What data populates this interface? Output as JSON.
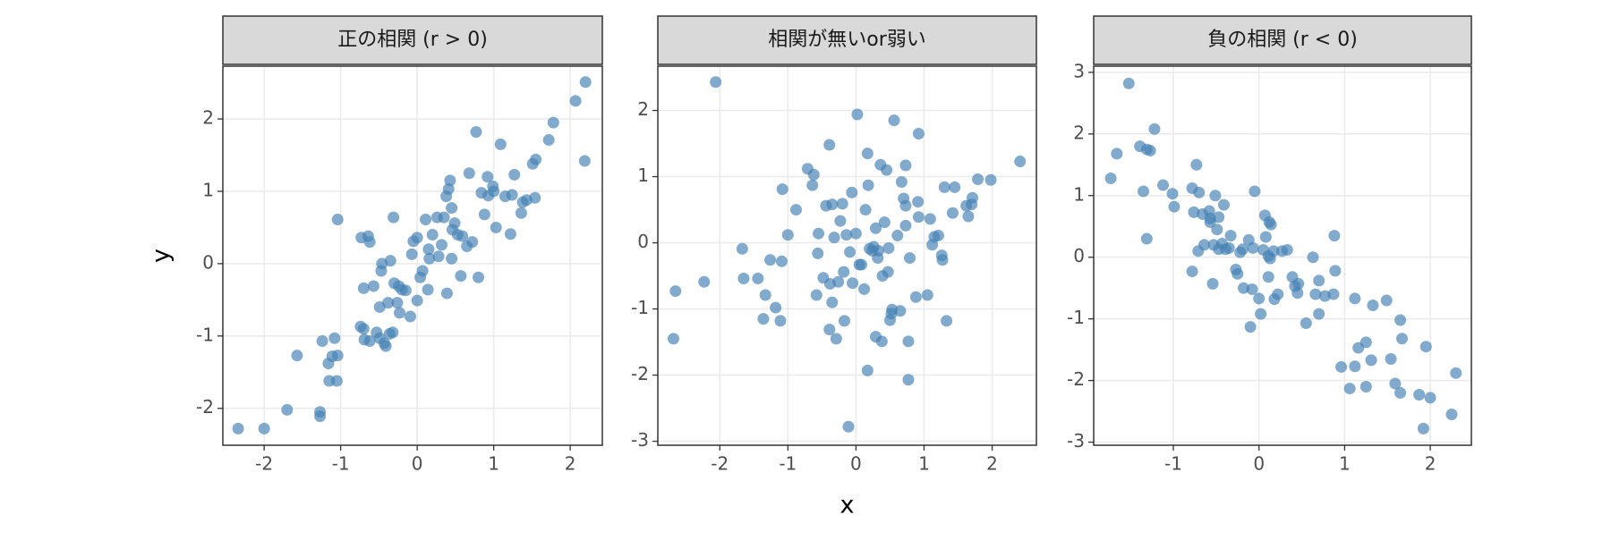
{
  "chart_data": [
    {
      "type": "scatter",
      "title": "正の相関 (r > 0)",
      "ylabel": "y",
      "color": "#4682b4",
      "grid": true,
      "xlim": [
        -2.54,
        2.42
      ],
      "ylim": [
        -2.51,
        2.73
      ],
      "xticks": [
        -2,
        -1,
        0,
        1,
        2
      ],
      "yticks": [
        -2,
        -1,
        0,
        1,
        2
      ],
      "x": [
        -2.34,
        -2,
        -1.7,
        -1.27,
        -1.27,
        -1.57,
        -1.24,
        -1.16,
        -1.15,
        -1.05,
        -1.08,
        -1.11,
        -1.04,
        -1.04,
        -0.73,
        -0.64,
        -0.62,
        -0.7,
        -0.57,
        -0.74,
        -0.7,
        -0.69,
        -0.62,
        -0.53,
        -0.49,
        -0.43,
        -0.41,
        -0.36,
        -0.32,
        -0.46,
        -0.47,
        -0.35,
        -0.31,
        -0.49,
        -0.38,
        -0.3,
        -0.24,
        -0.2,
        -0.26,
        -0.23,
        -0.09,
        0,
        -0.15,
        -0.07,
        -0.05,
        0,
        0.04,
        0.07,
        0.11,
        0.15,
        0.16,
        0.14,
        0.2,
        0.26,
        0.32,
        0.28,
        0.35,
        0.38,
        0.41,
        0.43,
        0.45,
        0.46,
        0.45,
        0.39,
        0.49,
        0.53,
        0.57,
        0.59,
        0.65,
        0.72,
        0.68,
        0.77,
        0.8,
        0.84,
        0.88,
        0.92,
        0.93,
        0.99,
        1,
        1.03,
        1.09,
        1.15,
        1.22,
        1.24,
        1.27,
        1.36,
        1.38,
        1.43,
        1.51,
        1.55,
        1.54,
        1.72,
        1.78,
        2.07,
        2.19,
        2.2
      ],
      "values": [
        -2.28,
        -2.28,
        -2.02,
        -2.05,
        -2.11,
        -1.27,
        -1.07,
        -1.38,
        -1.62,
        -1.62,
        -1.03,
        -1.28,
        -1.27,
        0.61,
        0.36,
        0.38,
        0.3,
        -0.34,
        -0.31,
        -0.87,
        -0.9,
        -1.05,
        -1.07,
        -0.95,
        -1.03,
        -1.1,
        -1.14,
        -0.97,
        -0.95,
        0,
        -0.1,
        0.04,
        0.64,
        -0.6,
        -0.54,
        -0.27,
        -0.31,
        -0.36,
        -0.54,
        -0.68,
        -0.73,
        -0.51,
        -0.37,
        0.13,
        0.31,
        0.36,
        -0.19,
        -0.1,
        0.61,
        0.2,
        0.07,
        -0.36,
        0.4,
        0.64,
        0.26,
        0.1,
        0.64,
        0.93,
        1.03,
        1.15,
        0.77,
        0.47,
        0.07,
        -0.41,
        0.56,
        0.4,
        -0.17,
        0.38,
        0.24,
        0.3,
        1.25,
        1.82,
        -0.19,
        0.98,
        0.68,
        1.2,
        0.94,
        1.07,
        1,
        0.5,
        1.65,
        0.93,
        0.41,
        0.95,
        1.23,
        0.7,
        0.85,
        0.88,
        1.38,
        1.44,
        0.91,
        1.71,
        1.95,
        2.25,
        1.42,
        2.51
      ]
    },
    {
      "type": "scatter",
      "title": "相関が無いor弱い",
      "xlabel": "x",
      "color": "#4682b4",
      "grid": true,
      "xlim": [
        -2.91,
        2.65
      ],
      "ylim": [
        -3.06,
        2.67
      ],
      "xticks": [
        -2,
        -1,
        0,
        1,
        2
      ],
      "yticks": [
        -3,
        -2,
        -1,
        0,
        1,
        2
      ],
      "x": [
        -2.06,
        -2.65,
        -2.68,
        -2.23,
        -1.67,
        -1.65,
        -1.44,
        -1.33,
        -1.36,
        -1.26,
        -1.18,
        -1.11,
        -1.09,
        -1.08,
        -1,
        -0.88,
        -0.71,
        -0.64,
        -0.62,
        -0.56,
        -0.55,
        -0.58,
        -0.48,
        -0.44,
        -0.39,
        -0.38,
        -0.39,
        -0.35,
        -0.32,
        -0.35,
        -0.29,
        -0.26,
        -0.23,
        -0.2,
        -0.17,
        -0.18,
        -0.14,
        -0.09,
        -0.05,
        -0.11,
        -0.06,
        0.02,
        0.05,
        0,
        0.08,
        0.12,
        0.14,
        0.17,
        0.17,
        0.18,
        0.2,
        0.24,
        0.26,
        0.29,
        0.29,
        0.33,
        0.32,
        0.36,
        0.38,
        0.39,
        0.42,
        0.45,
        0.47,
        0.48,
        0.5,
        0.53,
        0.52,
        0.56,
        0.61,
        0.65,
        0.67,
        0.7,
        0.73,
        0.73,
        0.77,
        0.73,
        0.77,
        0.79,
        0.88,
        0.92,
        0.91,
        0.92,
        1.05,
        1.09,
        1.12,
        1.15,
        1.21,
        1.26,
        1.27,
        1.3,
        1.33,
        1.42,
        1.45,
        1.62,
        1.65,
        1.71,
        1.7,
        1.79,
        1.98,
        2.41
      ],
      "values": [
        2.43,
        -0.73,
        -1.45,
        -0.59,
        -0.09,
        -0.54,
        -0.54,
        -0.79,
        -1.15,
        -0.26,
        -0.98,
        -1.18,
        -0.28,
        0.81,
        0.12,
        0.5,
        1.12,
        0.87,
        1.03,
        -0.16,
        0.14,
        -0.79,
        -0.53,
        0.56,
        1.48,
        -0.62,
        -1.31,
        0.58,
        0.08,
        -0.9,
        -1.45,
        -0.59,
        0.33,
        0.59,
        -1.18,
        -0.44,
        0.12,
        -0.14,
        -0.61,
        -2.78,
        0.76,
        1.94,
        -0.33,
        0.14,
        -0.33,
        -0.7,
        0.5,
        1.35,
        -1.93,
        0.87,
        -0.09,
        -0.12,
        -0.06,
        0.22,
        -1.42,
        -0.12,
        -0.23,
        1.18,
        -1.49,
        -0.5,
        0.31,
        1.1,
        -0.44,
        -0.08,
        -1.17,
        -1.01,
        -1.07,
        1.85,
        0.11,
        -1.03,
        0.92,
        0.67,
        1.17,
        0.26,
        -1.49,
        0.56,
        -2.07,
        -0.23,
        -0.82,
        1.65,
        0.62,
        0.39,
        -0.79,
        0.36,
        -0.03,
        0.09,
        0.11,
        -0.19,
        -0.26,
        0.84,
        -1.18,
        0.45,
        0.84,
        0.56,
        0.4,
        0.68,
        0.58,
        0.96,
        0.95,
        1.23
      ]
    },
    {
      "type": "scatter",
      "title": "負の相関 (r < 0)",
      "color": "#4682b4",
      "grid": true,
      "xlim": [
        -1.93,
        2.48
      ],
      "ylim": [
        -3.05,
        3.1
      ],
      "xticks": [
        -1,
        0,
        1,
        2
      ],
      "yticks": [
        -3,
        -2,
        -1,
        0,
        1,
        2,
        3
      ],
      "x": [
        -1.52,
        -1.73,
        -1.66,
        -1.39,
        -1.35,
        -1.31,
        -1.31,
        -1.27,
        -1.22,
        -1.12,
        -1.01,
        -0.99,
        -0.78,
        -0.78,
        -0.73,
        -0.76,
        -0.71,
        -0.7,
        -0.64,
        -0.66,
        -0.58,
        -0.57,
        -0.57,
        -0.53,
        -0.54,
        -0.51,
        -0.49,
        -0.47,
        -0.47,
        -0.43,
        -0.41,
        -0.39,
        -0.35,
        -0.33,
        -0.27,
        -0.25,
        -0.22,
        -0.19,
        -0.18,
        -0.12,
        -0.1,
        -0.07,
        -0.08,
        -0.05,
        0,
        0.02,
        0.05,
        0.07,
        0.08,
        0.11,
        0.11,
        0.12,
        0.14,
        0.13,
        0.17,
        0.18,
        0.22,
        0.27,
        0.33,
        0.39,
        0.42,
        0.45,
        0.46,
        0.55,
        0.63,
        0.66,
        0.7,
        0.7,
        0.77,
        0.88,
        0.87,
        0.89,
        0.96,
        1.06,
        1.12,
        1.12,
        1.16,
        1.25,
        1.25,
        1.31,
        1.33,
        1.49,
        1.54,
        1.59,
        1.65,
        1.65,
        1.67,
        1.87,
        1.92,
        1.95,
        2,
        2.25,
        2.3
      ],
      "values": [
        2.82,
        1.28,
        1.68,
        1.8,
        1.07,
        0.3,
        1.75,
        1.73,
        2.08,
        1.17,
        1.03,
        0.82,
        -0.23,
        1.12,
        1.5,
        0.73,
        0.1,
        1.05,
        0.2,
        0.7,
        0.75,
        0.57,
        0.63,
        0.2,
        -0.43,
        1,
        0.45,
        0.13,
        0.65,
        0.22,
        0.85,
        0.13,
        0.15,
        0.35,
        -0.2,
        -0.27,
        0.08,
        0.13,
        -0.5,
        0.28,
        -1.13,
        0.15,
        -0.52,
        1.07,
        -0.67,
        -0.92,
        0.12,
        0.68,
        0.33,
        0.02,
        -0.32,
        0.57,
        0.53,
        -0.02,
        0.1,
        -0.68,
        -0.6,
        0.1,
        0.12,
        -0.32,
        -0.47,
        -0.58,
        -0.43,
        -1.07,
        0,
        -0.6,
        -0.38,
        -0.92,
        -0.63,
        0.35,
        -0.6,
        -0.22,
        -1.78,
        -2.13,
        -1.77,
        -0.67,
        -1.47,
        -2.1,
        -1.38,
        -1.67,
        -0.78,
        -0.7,
        -1.65,
        -2.05,
        -1.02,
        -2.2,
        -1.32,
        -2.23,
        -2.78,
        -1.45,
        -2.28,
        -2.55,
        -1.88
      ]
    }
  ]
}
